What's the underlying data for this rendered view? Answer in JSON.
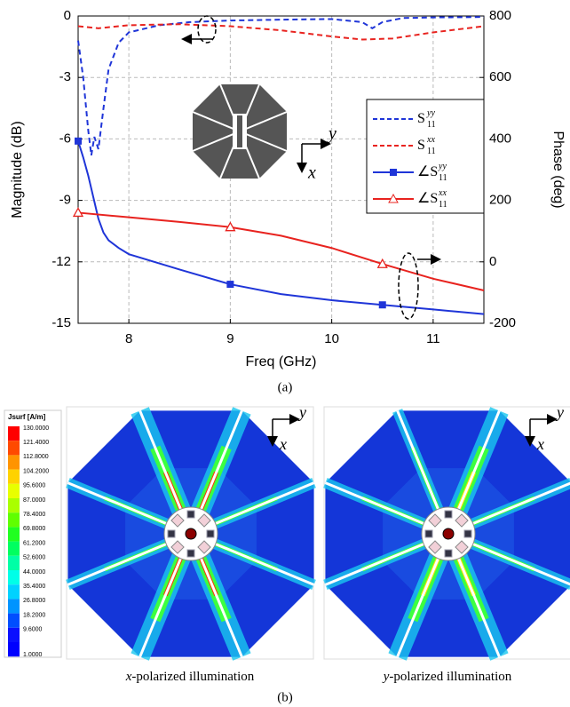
{
  "chart_data": {
    "type": "line",
    "xlabel": "Freq (GHz)",
    "ylabel": "Magnitude (dB)",
    "y2label": "Phase (deg)",
    "xlim": [
      7.5,
      11.5
    ],
    "xticks": [
      8,
      9,
      10,
      11
    ],
    "ylim": [
      -15,
      0
    ],
    "yticks": [
      0,
      -3,
      -6,
      -9,
      -12,
      -15
    ],
    "y2lim": [
      -200,
      800
    ],
    "y2ticks": [
      -200,
      0,
      200,
      400,
      600,
      800
    ],
    "grid": true,
    "series": [
      {
        "name": "S",
        "sub": "11",
        "sup": "yy",
        "color": "#1f35d8",
        "dash": true,
        "axis": "y",
        "x": [
          7.5,
          7.55,
          7.6,
          7.63,
          7.66,
          7.7,
          7.75,
          7.8,
          7.9,
          8.0,
          8.3,
          8.6,
          9.0,
          9.5,
          10.0,
          10.3,
          10.4,
          10.5,
          10.7,
          11.0,
          11.5
        ],
        "values": [
          -1.2,
          -3.0,
          -5.6,
          -6.8,
          -5.9,
          -6.5,
          -4.5,
          -2.6,
          -1.3,
          -0.8,
          -0.45,
          -0.3,
          -0.22,
          -0.18,
          -0.15,
          -0.3,
          -0.6,
          -0.3,
          -0.1,
          -0.07,
          -0.05
        ]
      },
      {
        "name": "S",
        "sub": "11",
        "sup": "xx",
        "color": "#e8231f",
        "dash": true,
        "axis": "y",
        "x": [
          7.5,
          7.7,
          8.0,
          8.5,
          9.0,
          9.5,
          10.0,
          10.3,
          10.6,
          11.0,
          11.5
        ],
        "values": [
          -0.5,
          -0.6,
          -0.45,
          -0.4,
          -0.5,
          -0.7,
          -1.0,
          -1.15,
          -1.1,
          -0.8,
          -0.5
        ]
      },
      {
        "name": "∠S",
        "sub": "11",
        "sup": "yy",
        "color": "#1f35d8",
        "dash": false,
        "marker": "square",
        "axis": "y2",
        "markers": [
          7.5,
          9,
          10.5
        ],
        "x": [
          7.5,
          7.55,
          7.6,
          7.65,
          7.7,
          7.75,
          7.8,
          7.9,
          8.0,
          8.5,
          9.0,
          9.5,
          10.0,
          10.5,
          11.0,
          11.5
        ],
        "values": [
          393,
          340,
          280,
          210,
          140,
          95,
          70,
          45,
          25,
          -25,
          -73,
          -105,
          -125,
          -140,
          -155,
          -170
        ]
      },
      {
        "name": "∠S",
        "sub": "11",
        "sup": "xx",
        "color": "#e8231f",
        "dash": false,
        "marker": "triangle",
        "axis": "y2",
        "markers": [
          7.5,
          9,
          10.5
        ],
        "x": [
          7.5,
          8.0,
          8.5,
          9.0,
          9.5,
          10.0,
          10.5,
          11.0,
          11.5
        ],
        "values": [
          160,
          145,
          130,
          113,
          85,
          45,
          -7,
          -55,
          -93
        ]
      }
    ],
    "inset_axis_labels": {
      "y": "y",
      "x": "x"
    }
  },
  "caption_a": "(a)",
  "figure_b": {
    "colorbar": {
      "title": "Jsurf [A/m]",
      "labels": [
        "130.0000",
        "121.4000",
        "112.8000",
        "104.2000",
        "95.6000",
        "87.0000",
        "78.4000",
        "69.8000",
        "61.2000",
        "52.6000",
        "44.0000",
        "35.4000",
        "26.8000",
        "18.2000",
        "9.6000",
        "1.0000"
      ],
      "colors": [
        "#ff0000",
        "#ff4a00",
        "#ff9400",
        "#ffd200",
        "#e8ff00",
        "#aaff00",
        "#60ff00",
        "#20ff20",
        "#00ff60",
        "#00ffa6",
        "#00ffe8",
        "#00d2ff",
        "#0094ff",
        "#004eff",
        "#0a10ff",
        "#0000ff"
      ]
    },
    "panels": [
      {
        "axis_labels": {
          "y": "y",
          "x": "x"
        },
        "caption": {
          "var": "x",
          "rest": "-polarized illumination"
        }
      },
      {
        "axis_labels": {
          "y": "y",
          "x": "x"
        },
        "caption": {
          "var": "y",
          "rest": "-polarized illumination"
        }
      }
    ],
    "caption": "(b)"
  }
}
